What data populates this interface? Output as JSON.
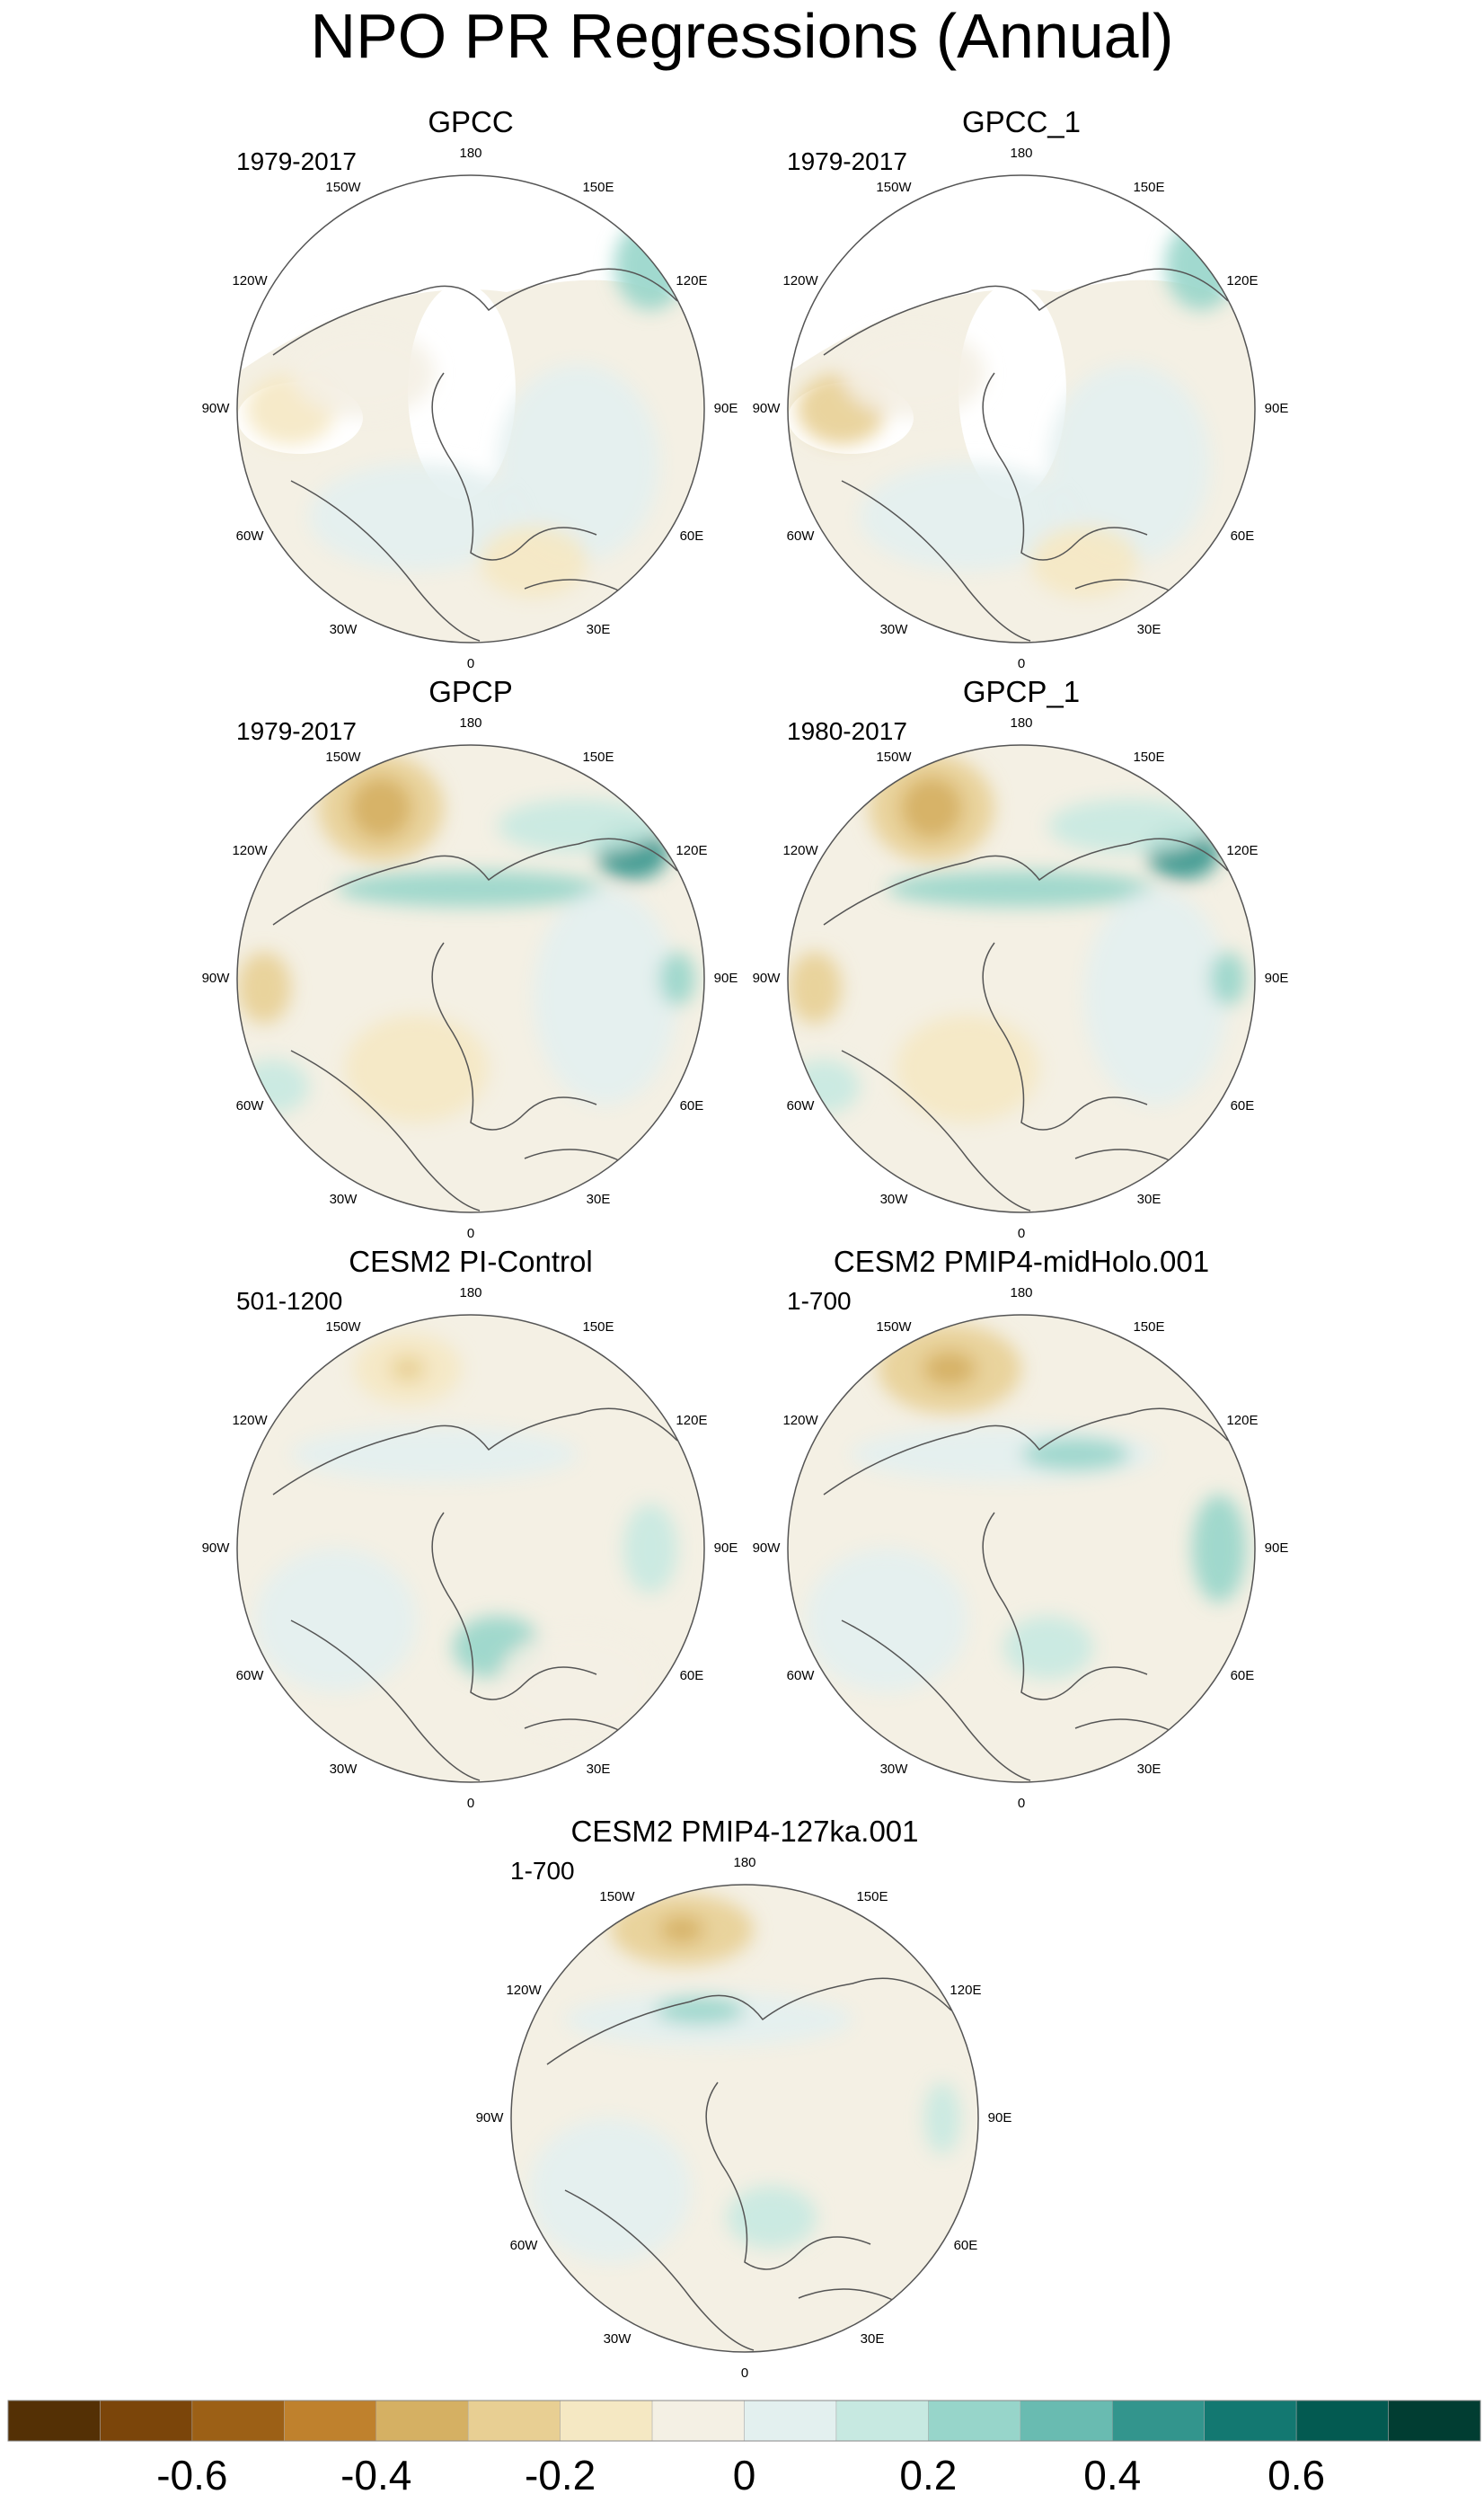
{
  "figure": {
    "title": "NPO PR Regressions (Annual)"
  },
  "chart_data": {
    "type": "heatmap",
    "title": "NPO PR Regressions (Annual)",
    "projection": "north-polar-stereographic",
    "panels": [
      {
        "name": "GPCC",
        "period": "1979-2017",
        "coverage": "land-only"
      },
      {
        "name": "GPCC_1",
        "period": "1979-2017",
        "coverage": "land-only"
      },
      {
        "name": "GPCP",
        "period": "1979-2017",
        "coverage": "global"
      },
      {
        "name": "GPCP_1",
        "period": "1980-2017",
        "coverage": "global"
      },
      {
        "name": "CESM2 PI-Control",
        "period": "501-1200",
        "coverage": "global"
      },
      {
        "name": "CESM2 PMIP4-midHolo.001",
        "period": "1-700",
        "coverage": "global"
      },
      {
        "name": "CESM2 PMIP4-127ka.001",
        "period": "1-700",
        "coverage": "global"
      }
    ],
    "lon_labels": [
      "180",
      "150E",
      "120E",
      "90E",
      "60E",
      "30E",
      "0",
      "30W",
      "60W",
      "90W",
      "120W",
      "150W"
    ],
    "lon_values": [
      180,
      150,
      120,
      90,
      60,
      30,
      0,
      -30,
      -60,
      -90,
      -120,
      -150
    ],
    "colorbar": {
      "levels": [
        -0.7,
        -0.6,
        -0.5,
        -0.4,
        -0.3,
        -0.2,
        -0.1,
        0,
        0.1,
        0.2,
        0.3,
        0.4,
        0.5,
        0.6,
        0.7
      ],
      "tick_labels": [
        "-0.6",
        "-0.4",
        "-0.2",
        "0",
        "0.2",
        "0.4",
        "0.6"
      ],
      "tick_values": [
        -0.6,
        -0.4,
        -0.2,
        0,
        0.2,
        0.4,
        0.6
      ],
      "colors": [
        "#543005",
        "#7b450a",
        "#9c6016",
        "#bf812d",
        "#d5b063",
        "#e8cf93",
        "#f5e8c3",
        "#f4f0e4",
        "#e3f0ef",
        "#c7e9e1",
        "#97d5ca",
        "#69bbb1",
        "#33958d",
        "#137871",
        "#035a51",
        "#013d32"
      ]
    }
  }
}
